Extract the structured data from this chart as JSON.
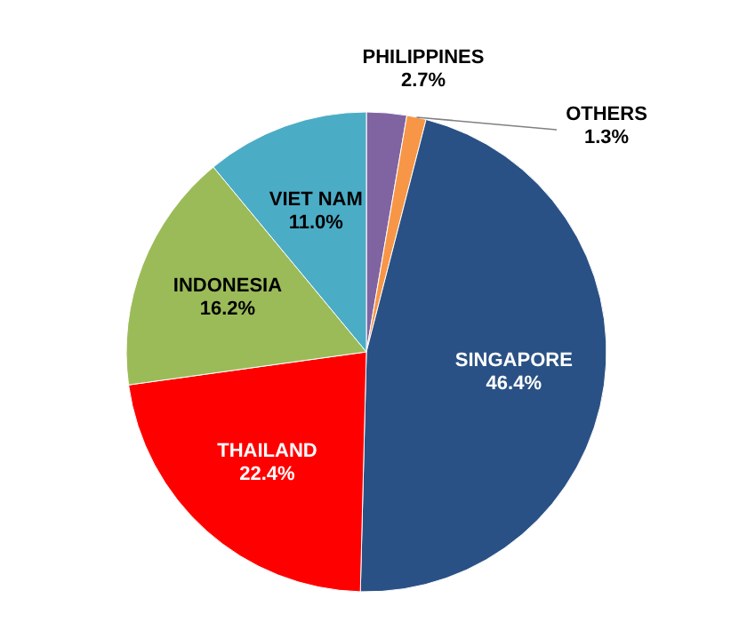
{
  "chart_data": {
    "type": "pie",
    "categories": [
      "PHILIPPINES",
      "OTHERS",
      "SINGAPORE",
      "THAILAND",
      "INDONESIA",
      "VIET NAM"
    ],
    "values": [
      2.7,
      1.3,
      46.4,
      22.4,
      16.2,
      11.0
    ],
    "value_labels": [
      "2.7%",
      "1.3%",
      "46.4%",
      "22.4%",
      "16.2%",
      "11.0%"
    ],
    "colors": [
      "#8064a2",
      "#f79646",
      "#2a5185",
      "#ff0000",
      "#9bbb59",
      "#4bacc6"
    ]
  }
}
